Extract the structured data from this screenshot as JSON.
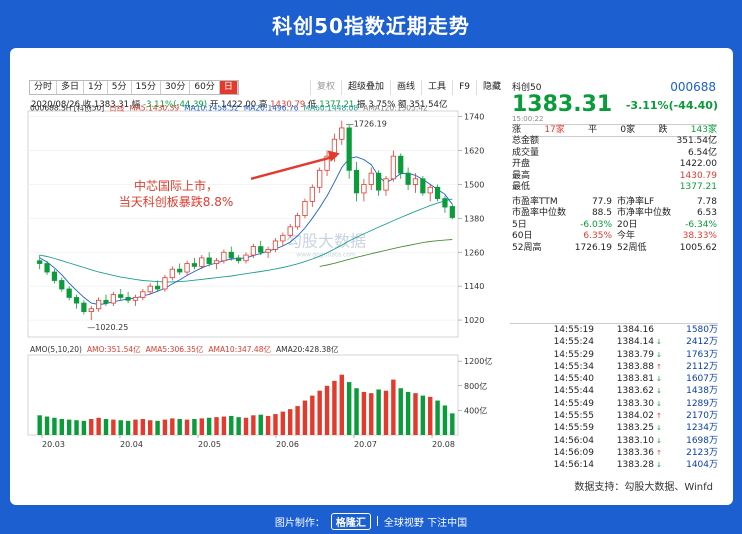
{
  "banner_title": "科创50指数近期走势",
  "tabs": [
    "分时",
    "多日",
    "1分",
    "5分",
    "15分",
    "30分",
    "60分",
    "日"
  ],
  "tools": [
    "复权",
    "超级叠加",
    "画线",
    "工具",
    "F9",
    "隐藏"
  ],
  "ohlc": {
    "date": "2020/08/26",
    "close_label": "收",
    "close": "1383.31",
    "amp_label": "幅",
    "amp": "-3.11%(-44.39)",
    "open_label": "开",
    "open": "1422.00",
    "high_label": "高",
    "high": "1430.79",
    "low_label": "低",
    "low": "1377.21",
    "swing_label": "振",
    "swing": "3.75%",
    "vol_label": "额",
    "vol": "351.54亿"
  },
  "ma_legend": [
    {
      "text": "000688.SH [科创50]",
      "color": "#333333"
    },
    {
      "text": "日线",
      "color": "#e23b2e"
    },
    {
      "text": "MA5:1430.39",
      "color": "#e23b2e"
    },
    {
      "text": "MA10:1458.52",
      "color": "#1c5fd0"
    },
    {
      "text": "MA20:1496.76",
      "color": "#1c5fd0"
    },
    {
      "text": "MA60:1448.08",
      "color": "#1e9e8e"
    },
    {
      "text": "AMA120:1305.42",
      "color": "#888888"
    }
  ],
  "vol_legend": [
    {
      "text": "AMO(5,10,20)",
      "color": "#333333"
    },
    {
      "text": "AMO:351.54亿",
      "color": "#e23b2e"
    },
    {
      "text": "AMA5:306.35亿",
      "color": "#e23b2e"
    },
    {
      "text": "AMA10:347.48亿",
      "color": "#e23b2e"
    },
    {
      "text": "AMA20:428.38亿",
      "color": "#333333"
    }
  ],
  "annotation": "中芯国际上市，\n当天科创板暴跌8.8%",
  "peak_label": "1726.19",
  "trough_label": "1020.25",
  "watermark": {
    "name": "勾股大数据",
    "url": "www.gogudata.com"
  },
  "right": {
    "name": "科创50",
    "code": "000688",
    "price": "1383.31",
    "change": "-3.11%(-44.40)",
    "time": "15:00:22",
    "breadth": {
      "up_label": "涨",
      "up": "17家",
      "flat_label": "平",
      "flat": "0家",
      "down_label": "跌",
      "down": "143家"
    },
    "stats": [
      [
        "总金额",
        "351.54亿"
      ],
      [
        "成交量",
        "6.54亿"
      ],
      [
        "开盘",
        "1422.00"
      ],
      [
        "最高",
        "1430.79"
      ],
      [
        "最低",
        "1377.21"
      ]
    ],
    "pairs": [
      [
        [
          "市盈率TTM",
          "77.9"
        ],
        [
          "市净率LF",
          "7.78"
        ]
      ],
      [
        [
          "市盈率中位数",
          "88.5"
        ],
        [
          "市净率中位数",
          "6.53"
        ]
      ],
      [
        [
          "5日",
          "-6.03%"
        ],
        [
          "20日",
          "-6.34%"
        ]
      ],
      [
        [
          "60日",
          "6.35%"
        ],
        [
          "今年",
          "38.33%"
        ]
      ],
      [
        [
          "52周高",
          "1726.19"
        ],
        [
          "52周低",
          "1005.62"
        ]
      ]
    ],
    "ticks": [
      [
        "14:55:19",
        "1384.16",
        "",
        "1580万"
      ],
      [
        "14:55:24",
        "1384.14",
        "↓",
        "2412万"
      ],
      [
        "14:55:29",
        "1383.79",
        "↓",
        "1763万"
      ],
      [
        "14:55:34",
        "1383.88",
        "↑",
        "2112万"
      ],
      [
        "14:55:40",
        "1383.81",
        "↓",
        "1607万"
      ],
      [
        "14:55:44",
        "1383.62",
        "↓",
        "1438万"
      ],
      [
        "14:55:49",
        "1383.30",
        "↓",
        "1289万"
      ],
      [
        "14:55:55",
        "1384.02",
        "↑",
        "2170万"
      ],
      [
        "14:55:59",
        "1383.25",
        "↓",
        "1234万"
      ],
      [
        "14:56:04",
        "1383.10",
        "↓",
        "1698万"
      ],
      [
        "14:56:09",
        "1383.36",
        "↑",
        "2123万"
      ],
      [
        "14:56:14",
        "1383.28",
        "↓",
        "1404万"
      ]
    ]
  },
  "source": "数据支持：勾股大数据、Winfd",
  "footer": {
    "left": "图片制作：",
    "logo": "格隆汇",
    "right": "全球视野 下注中国"
  },
  "chart_data": {
    "type": "candlestick",
    "x_ticks": [
      "20.03",
      "20.04",
      "20.05",
      "20.06",
      "20.07",
      "20.08"
    ],
    "y_ticks": [
      1020,
      1140,
      1260,
      1380,
      1500,
      1620,
      1740
    ],
    "ylim": [
      960,
      1760
    ],
    "vol_ticks": [
      "400亿",
      "800亿",
      "1200亿"
    ],
    "vol_ylim": [
      0,
      1300
    ],
    "candles": [
      [
        1230,
        1250,
        1200,
        1220
      ],
      [
        1220,
        1230,
        1180,
        1190
      ],
      [
        1190,
        1200,
        1150,
        1160
      ],
      [
        1160,
        1170,
        1120,
        1130
      ],
      [
        1130,
        1140,
        1090,
        1100
      ],
      [
        1100,
        1110,
        1060,
        1080
      ],
      [
        1080,
        1090,
        1040,
        1050
      ],
      [
        1050,
        1070,
        1020,
        1060
      ],
      [
        1060,
        1100,
        1050,
        1090
      ],
      [
        1090,
        1110,
        1070,
        1080
      ],
      [
        1080,
        1120,
        1070,
        1110
      ],
      [
        1110,
        1130,
        1090,
        1100
      ],
      [
        1100,
        1120,
        1080,
        1090
      ],
      [
        1090,
        1110,
        1070,
        1100
      ],
      [
        1100,
        1130,
        1090,
        1120
      ],
      [
        1120,
        1150,
        1110,
        1140
      ],
      [
        1140,
        1160,
        1120,
        1130
      ],
      [
        1130,
        1180,
        1120,
        1170
      ],
      [
        1170,
        1210,
        1160,
        1200
      ],
      [
        1200,
        1220,
        1180,
        1190
      ],
      [
        1190,
        1230,
        1180,
        1220
      ],
      [
        1220,
        1240,
        1200,
        1210
      ],
      [
        1210,
        1250,
        1200,
        1240
      ],
      [
        1240,
        1260,
        1210,
        1220
      ],
      [
        1220,
        1240,
        1200,
        1230
      ],
      [
        1230,
        1270,
        1220,
        1260
      ],
      [
        1260,
        1280,
        1230,
        1240
      ],
      [
        1240,
        1250,
        1220,
        1230
      ],
      [
        1230,
        1260,
        1220,
        1250
      ],
      [
        1250,
        1290,
        1240,
        1280
      ],
      [
        1280,
        1300,
        1250,
        1260
      ],
      [
        1260,
        1280,
        1240,
        1270
      ],
      [
        1270,
        1310,
        1260,
        1300
      ],
      [
        1300,
        1330,
        1280,
        1320
      ],
      [
        1320,
        1360,
        1310,
        1350
      ],
      [
        1350,
        1400,
        1340,
        1390
      ],
      [
        1390,
        1450,
        1380,
        1440
      ],
      [
        1440,
        1500,
        1420,
        1490
      ],
      [
        1490,
        1560,
        1470,
        1550
      ],
      [
        1550,
        1620,
        1530,
        1600
      ],
      [
        1600,
        1680,
        1580,
        1660
      ],
      [
        1660,
        1726,
        1640,
        1700
      ],
      [
        1700,
        1710,
        1520,
        1550
      ],
      [
        1550,
        1580,
        1440,
        1470
      ],
      [
        1470,
        1520,
        1440,
        1500
      ],
      [
        1500,
        1560,
        1480,
        1540
      ],
      [
        1540,
        1550,
        1460,
        1480
      ],
      [
        1480,
        1530,
        1460,
        1520
      ],
      [
        1520,
        1620,
        1510,
        1600
      ],
      [
        1600,
        1610,
        1520,
        1540
      ],
      [
        1540,
        1560,
        1480,
        1500
      ],
      [
        1500,
        1540,
        1470,
        1520
      ],
      [
        1520,
        1530,
        1460,
        1470
      ],
      [
        1470,
        1500,
        1440,
        1490
      ],
      [
        1490,
        1500,
        1440,
        1450
      ],
      [
        1450,
        1460,
        1400,
        1420
      ],
      [
        1422,
        1430,
        1377,
        1383
      ]
    ],
    "ma5": [
      1240,
      1225,
      1205,
      1180,
      1150,
      1125,
      1100,
      1080,
      1075,
      1078,
      1085,
      1090,
      1095,
      1098,
      1105,
      1112,
      1122,
      1132,
      1148,
      1162,
      1178,
      1192,
      1205,
      1215,
      1222,
      1230,
      1236,
      1238,
      1240,
      1248,
      1256,
      1264,
      1272,
      1282,
      1296,
      1318,
      1346,
      1380,
      1418,
      1460,
      1508,
      1560,
      1592,
      1598,
      1588,
      1570,
      1528,
      1506,
      1520,
      1538,
      1540,
      1532,
      1518,
      1500,
      1482,
      1465,
      1430
    ],
    "ma60": [
      1250,
      1245,
      1238,
      1230,
      1222,
      1214,
      1206,
      1198,
      1190,
      1184,
      1178,
      1172,
      1168,
      1164,
      1160,
      1158,
      1156,
      1155,
      1155,
      1156,
      1158,
      1161,
      1164,
      1167,
      1170,
      1173,
      1176,
      1180,
      1184,
      1188,
      1192,
      1196,
      1201,
      1206,
      1212,
      1219,
      1227,
      1236,
      1246,
      1258,
      1271,
      1285,
      1300,
      1313,
      1325,
      1337,
      1349,
      1360,
      1372,
      1383,
      1394,
      1405,
      1415,
      1425,
      1434,
      1442,
      1448
    ],
    "ama120": [
      null,
      null,
      null,
      null,
      null,
      null,
      null,
      null,
      null,
      null,
      null,
      null,
      null,
      null,
      null,
      null,
      null,
      null,
      null,
      null,
      null,
      null,
      null,
      null,
      null,
      null,
      null,
      null,
      null,
      null,
      null,
      null,
      null,
      null,
      null,
      null,
      null,
      null,
      1210,
      1215,
      1221,
      1228,
      1235,
      1242,
      1248,
      1255,
      1261,
      1267,
      1273,
      1279,
      1284,
      1289,
      1294,
      1298,
      1301,
      1303,
      1305
    ],
    "volume": [
      320,
      300,
      280,
      260,
      250,
      240,
      230,
      260,
      280,
      260,
      250,
      240,
      230,
      250,
      260,
      240,
      230,
      250,
      270,
      260,
      250,
      260,
      270,
      280,
      290,
      300,
      310,
      290,
      280,
      320,
      330,
      310,
      340,
      380,
      420,
      470,
      560,
      640,
      720,
      800,
      880,
      980,
      860,
      760,
      700,
      680,
      740,
      720,
      900,
      760,
      700,
      680,
      640,
      620,
      560,
      480,
      352
    ]
  }
}
